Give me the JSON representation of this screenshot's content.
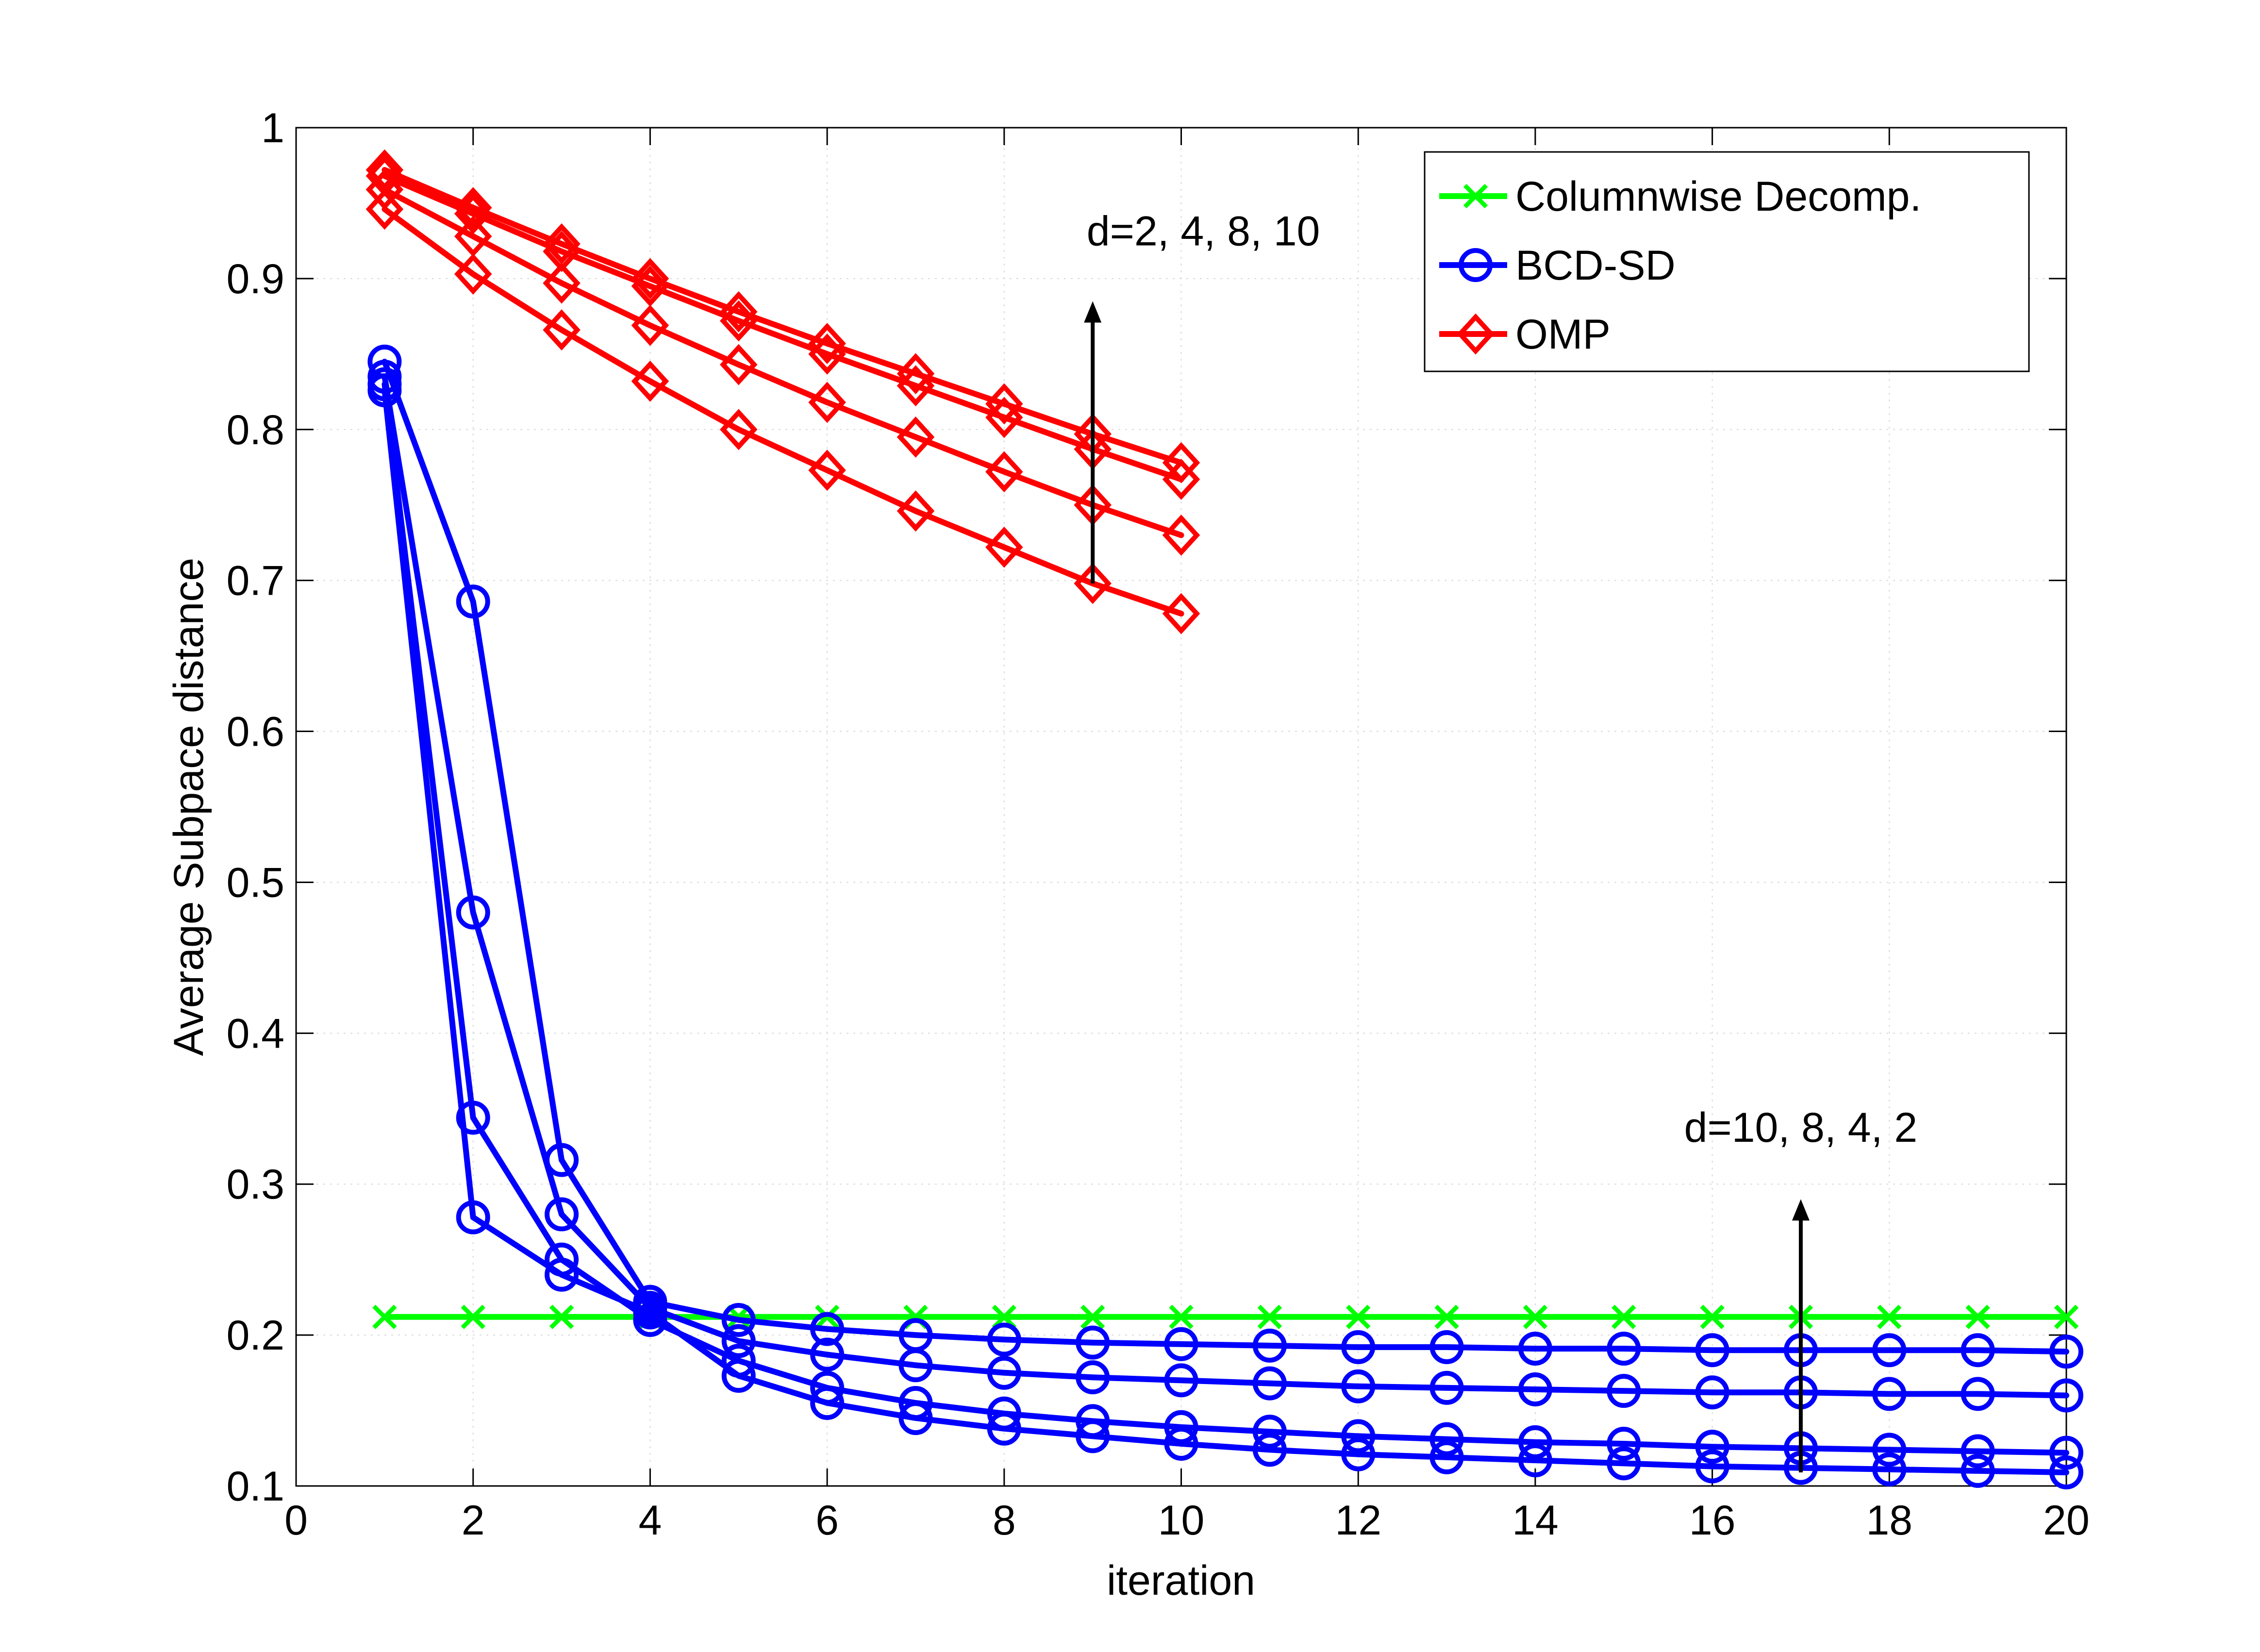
{
  "chart_data": {
    "type": "line",
    "title": "",
    "xlabel": "iteration",
    "ylabel": "Average Subpace distance",
    "xlim": [
      0,
      20
    ],
    "ylim": [
      0.1,
      1
    ],
    "xticks": [
      0,
      2,
      4,
      6,
      8,
      10,
      12,
      14,
      16,
      18,
      20
    ],
    "yticks": [
      0.1,
      0.2,
      0.3,
      0.4,
      0.5,
      0.6,
      0.7,
      0.8,
      0.9,
      1
    ],
    "ytick_labels": [
      "0.1",
      "0.2",
      "0.3",
      "0.4",
      "0.5",
      "0.6",
      "0.7",
      "0.8",
      "0.9",
      "1"
    ],
    "grid": true,
    "legend_position": "top-right",
    "legend": [
      {
        "name": "Columnwise Decomp.",
        "color": "#00ff00",
        "marker": "x"
      },
      {
        "name": "BCD-SD",
        "color": "#0000ff",
        "marker": "o"
      },
      {
        "name": "OMP",
        "color": "#ff0000",
        "marker": "diamond"
      }
    ],
    "series": [
      {
        "name": "Columnwise Decomp.",
        "group": "Columnwise Decomp.",
        "color": "#00ff00",
        "marker": "x",
        "x": [
          1,
          2,
          3,
          4,
          5,
          6,
          7,
          8,
          9,
          10,
          11,
          12,
          13,
          14,
          15,
          16,
          17,
          18,
          19,
          20
        ],
        "y": [
          0.212,
          0.212,
          0.212,
          0.212,
          0.212,
          0.212,
          0.212,
          0.212,
          0.212,
          0.212,
          0.212,
          0.212,
          0.212,
          0.212,
          0.212,
          0.212,
          0.212,
          0.212,
          0.212,
          0.212
        ]
      },
      {
        "name": "BCD-SD d=2",
        "group": "BCD-SD",
        "color": "#0000ff",
        "marker": "o",
        "x": [
          1,
          2,
          3,
          4,
          5,
          6,
          7,
          8,
          9,
          10,
          11,
          12,
          13,
          14,
          15,
          16,
          17,
          18,
          19,
          20
        ],
        "y": [
          0.826,
          0.278,
          0.24,
          0.215,
          0.173,
          0.155,
          0.145,
          0.138,
          0.133,
          0.128,
          0.124,
          0.121,
          0.119,
          0.117,
          0.115,
          0.113,
          0.112,
          0.111,
          0.11,
          0.109
        ]
      },
      {
        "name": "BCD-SD d=4",
        "group": "BCD-SD",
        "color": "#0000ff",
        "marker": "o",
        "x": [
          1,
          2,
          3,
          4,
          5,
          6,
          7,
          8,
          9,
          10,
          11,
          12,
          13,
          14,
          15,
          16,
          17,
          18,
          19,
          20
        ],
        "y": [
          0.83,
          0.344,
          0.25,
          0.21,
          0.183,
          0.165,
          0.155,
          0.148,
          0.143,
          0.139,
          0.136,
          0.133,
          0.131,
          0.129,
          0.128,
          0.126,
          0.125,
          0.124,
          0.123,
          0.122
        ]
      },
      {
        "name": "BCD-SD d=8",
        "group": "BCD-SD",
        "color": "#0000ff",
        "marker": "o",
        "x": [
          1,
          2,
          3,
          4,
          5,
          6,
          7,
          8,
          9,
          10,
          11,
          12,
          13,
          14,
          15,
          16,
          17,
          18,
          19,
          20
        ],
        "y": [
          0.835,
          0.48,
          0.28,
          0.218,
          0.196,
          0.187,
          0.18,
          0.175,
          0.172,
          0.17,
          0.168,
          0.166,
          0.165,
          0.164,
          0.163,
          0.162,
          0.162,
          0.161,
          0.161,
          0.16
        ]
      },
      {
        "name": "BCD-SD d=10",
        "group": "BCD-SD",
        "color": "#0000ff",
        "marker": "o",
        "x": [
          1,
          2,
          3,
          4,
          5,
          6,
          7,
          8,
          9,
          10,
          11,
          12,
          13,
          14,
          15,
          16,
          17,
          18,
          19,
          20
        ],
        "y": [
          0.845,
          0.686,
          0.316,
          0.222,
          0.21,
          0.204,
          0.2,
          0.197,
          0.195,
          0.194,
          0.193,
          0.192,
          0.192,
          0.191,
          0.191,
          0.19,
          0.19,
          0.19,
          0.19,
          0.189
        ]
      },
      {
        "name": "OMP d=2",
        "group": "OMP",
        "color": "#ff0000",
        "marker": "diamond",
        "x": [
          1,
          2,
          3,
          4,
          5,
          6,
          7,
          8,
          9,
          10
        ],
        "y": [
          0.946,
          0.903,
          0.866,
          0.832,
          0.8,
          0.773,
          0.746,
          0.722,
          0.698,
          0.678
        ]
      },
      {
        "name": "OMP d=4",
        "group": "OMP",
        "color": "#ff0000",
        "marker": "diamond",
        "x": [
          1,
          2,
          3,
          4,
          5,
          6,
          7,
          8,
          9,
          10
        ],
        "y": [
          0.959,
          0.928,
          0.897,
          0.869,
          0.843,
          0.818,
          0.795,
          0.772,
          0.75,
          0.73
        ]
      },
      {
        "name": "OMP d=8",
        "group": "OMP",
        "color": "#ff0000",
        "marker": "diamond",
        "x": [
          1,
          2,
          3,
          4,
          5,
          6,
          7,
          8,
          9,
          10
        ],
        "y": [
          0.968,
          0.943,
          0.918,
          0.895,
          0.872,
          0.85,
          0.829,
          0.808,
          0.787,
          0.767
        ]
      },
      {
        "name": "OMP d=10",
        "group": "OMP",
        "color": "#ff0000",
        "marker": "diamond",
        "x": [
          1,
          2,
          3,
          4,
          5,
          6,
          7,
          8,
          9,
          10
        ],
        "y": [
          0.972,
          0.947,
          0.923,
          0.9,
          0.878,
          0.857,
          0.837,
          0.817,
          0.797,
          0.778
        ]
      }
    ],
    "annotations": [
      {
        "text": "d=2, 4, 8, 10",
        "label_x": 10.25,
        "label_y": 0.922,
        "arrow_x": 9,
        "arrow_from_y": 0.698,
        "arrow_to_y": 0.885
      },
      {
        "text": "d=10, 8, 4, 2",
        "label_x": 17,
        "label_y": 0.328,
        "arrow_x": 17,
        "arrow_from_y": 0.109,
        "arrow_to_y": 0.29
      }
    ]
  }
}
